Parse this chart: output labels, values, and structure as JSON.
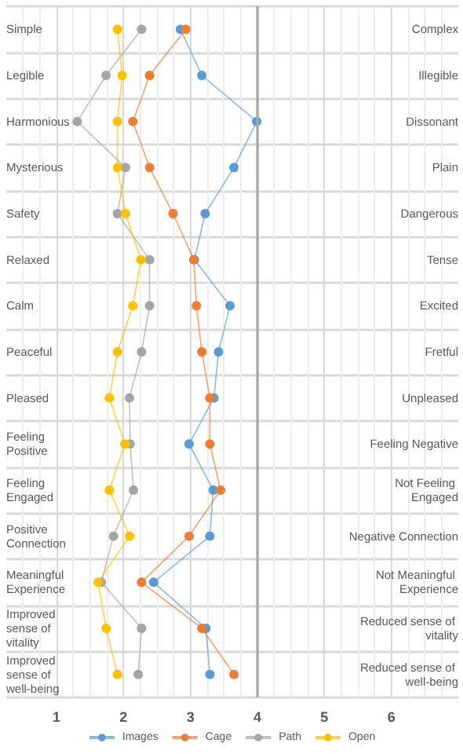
{
  "chart_data": {
    "type": "line",
    "orientation": "horizontal",
    "categories": [
      "Simple",
      "Legible",
      "Harmonious",
      "Mysterious",
      "Safety",
      "Relaxed",
      "Calm",
      "Peaceful",
      "Pleased",
      "Feeling Positive",
      "Feeling Engaged",
      "Positive Connection",
      "Meaningful Experience",
      "Improved sense of vitality",
      "Improved sense of well-being"
    ],
    "y2_categories": [
      "Complex",
      "Illegible",
      "Dissonant",
      "Plain",
      "Dangerous",
      "Tense",
      "Excited",
      "Fretful",
      "Unpleased",
      "Feeling Negative",
      "Not Feeling Engaged",
      "Negative Connection",
      "Not Meaningful Experience",
      "Reduced sense of vitality",
      "Reduced sense of well-being"
    ],
    "series": [
      {
        "name": "Images",
        "color": "#5b9bd5",
        "values": [
          2.85,
          3.17,
          3.99,
          3.65,
          3.22,
          3.06,
          3.59,
          3.42,
          3.35,
          2.98,
          3.34,
          3.29,
          2.45,
          3.23,
          3.29
        ]
      },
      {
        "name": "Cage",
        "color": "#ed7d31",
        "values": [
          2.93,
          2.39,
          2.14,
          2.39,
          2.74,
          3.05,
          3.09,
          3.17,
          3.29,
          3.29,
          3.45,
          2.98,
          2.27,
          3.17,
          3.65
        ]
      },
      {
        "name": "Path",
        "color": "#a5a5a5",
        "values": [
          2.27,
          1.74,
          1.31,
          2.03,
          1.91,
          2.39,
          2.39,
          2.27,
          2.09,
          2.1,
          2.15,
          1.85,
          1.67,
          2.27,
          2.22
        ]
      },
      {
        "name": "Open",
        "color": "#ffc000",
        "values": [
          1.91,
          1.98,
          1.91,
          1.91,
          2.03,
          2.26,
          2.14,
          1.91,
          1.79,
          2.02,
          1.79,
          2.09,
          1.62,
          1.74,
          1.91
        ]
      }
    ],
    "xlim": [
      0.25,
      7
    ],
    "xticks": [
      1,
      2,
      3,
      4,
      5,
      6
    ],
    "ref_lines": [
      {
        "axis": "x",
        "value": 4,
        "color": "#a6a6a6"
      }
    ],
    "grid": true,
    "legend": "bottom",
    "marker": "circle",
    "line_style": "solid"
  }
}
